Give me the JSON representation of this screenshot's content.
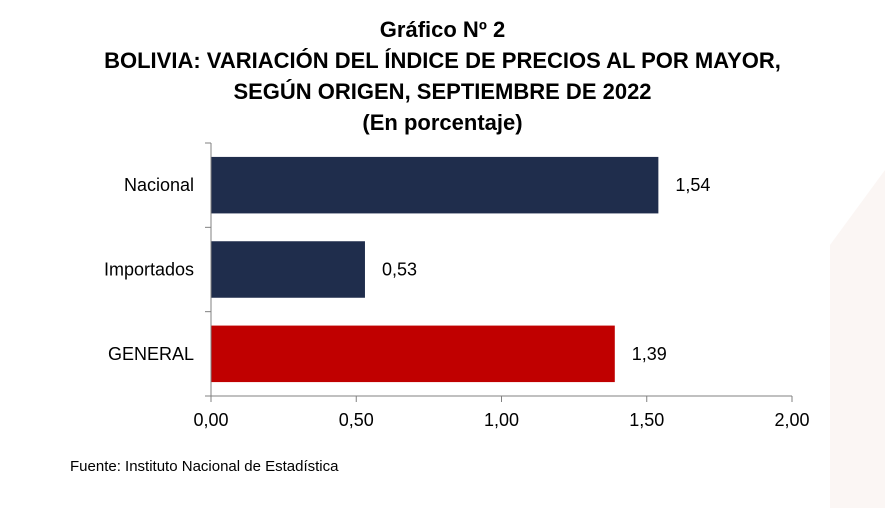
{
  "chart_data": {
    "type": "bar",
    "orientation": "horizontal",
    "title": "Gráfico Nº 2",
    "subtitle_lines": [
      "BOLIVIA: VARIACIÓN DEL ÍNDICE DE PRECIOS AL POR MAYOR,",
      "SEGÚN ORIGEN, SEPTIEMBRE DE 2022",
      "(En porcentaje)"
    ],
    "categories": [
      "Nacional",
      "Importados",
      "GENERAL"
    ],
    "values": [
      1.54,
      0.53,
      1.39
    ],
    "value_labels": [
      "1,54",
      "0,53",
      "1,39"
    ],
    "bar_colors": [
      "#1f2d4c",
      "#1f2d4c",
      "#c00000"
    ],
    "xlim": [
      0,
      2
    ],
    "xticks": [
      0,
      0.5,
      1,
      1.5,
      2
    ],
    "xtick_labels": [
      "0,00",
      "0,50",
      "1,00",
      "1,50",
      "2,00"
    ],
    "grid": false,
    "legend": "none"
  },
  "source": "Fuente: Instituto Nacional de Estadística"
}
